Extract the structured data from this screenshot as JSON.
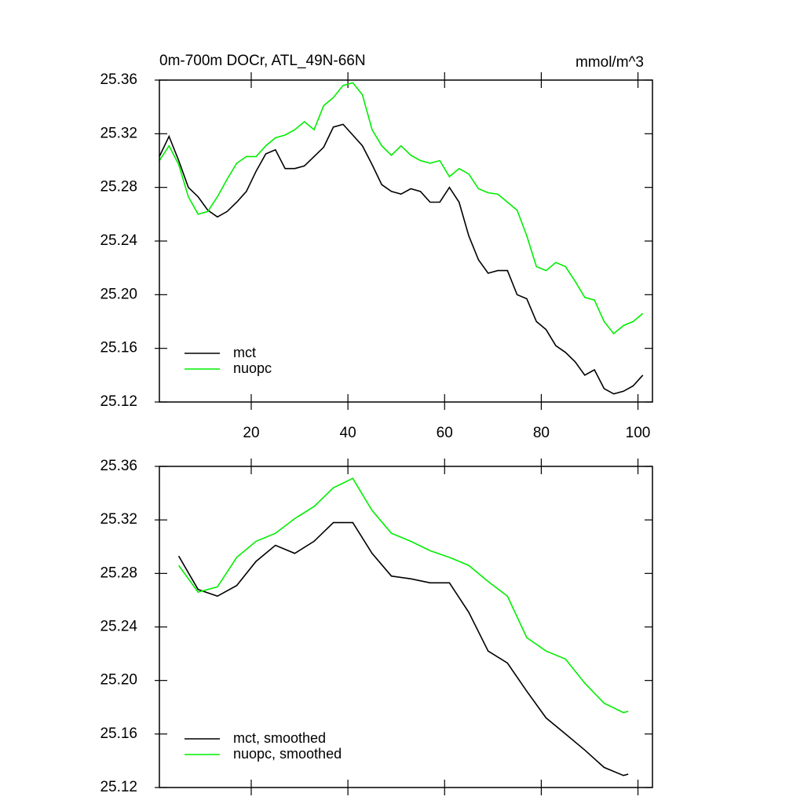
{
  "chart_data": [
    {
      "type": "line",
      "title": "0m-700m DOCr, ATL_49N-66N",
      "units": "mmol/m^3",
      "x": [
        1,
        3,
        5,
        7,
        9,
        11,
        13,
        15,
        17,
        19,
        21,
        23,
        25,
        27,
        29,
        31,
        33,
        35,
        37,
        39,
        41,
        43,
        45,
        47,
        49,
        51,
        53,
        55,
        57,
        59,
        61,
        63,
        65,
        67,
        69,
        71,
        73,
        75,
        77,
        79,
        81,
        83,
        85,
        87,
        89,
        91,
        93,
        95,
        97,
        99,
        101
      ],
      "series": [
        {
          "name": "mct",
          "color": "#000000",
          "values": [
            25.303,
            25.318,
            25.3,
            25.28,
            25.273,
            25.263,
            25.258,
            25.262,
            25.269,
            25.277,
            25.292,
            25.305,
            25.308,
            25.294,
            25.294,
            25.296,
            25.303,
            25.31,
            25.325,
            25.327,
            25.319,
            25.311,
            25.297,
            25.282,
            25.277,
            25.275,
            25.279,
            25.277,
            25.269,
            25.269,
            25.28,
            25.269,
            25.244,
            25.226,
            25.216,
            25.218,
            25.218,
            25.2,
            25.197,
            25.18,
            25.174,
            25.162,
            25.157,
            25.15,
            25.14,
            25.144,
            25.13,
            25.126,
            25.128,
            25.132,
            25.14
          ]
        },
        {
          "name": "nuopc",
          "color": "#00ee00",
          "values": [
            25.3,
            25.311,
            25.297,
            25.273,
            25.26,
            25.262,
            25.273,
            25.286,
            25.298,
            25.303,
            25.303,
            25.311,
            25.317,
            25.319,
            25.323,
            25.329,
            25.323,
            25.341,
            25.347,
            25.356,
            25.358,
            25.349,
            25.323,
            25.311,
            25.304,
            25.311,
            25.304,
            25.3,
            25.298,
            25.3,
            25.288,
            25.294,
            25.29,
            25.279,
            25.276,
            25.275,
            25.269,
            25.263,
            25.244,
            25.221,
            25.218,
            25.224,
            25.221,
            25.21,
            25.198,
            25.196,
            25.18,
            25.171,
            25.177,
            25.18,
            25.186
          ]
        }
      ],
      "xlim": [
        1,
        103
      ],
      "ylim": [
        25.12,
        25.36
      ],
      "xticks": [
        20,
        40,
        60,
        80,
        100
      ],
      "yticks": [
        25.12,
        25.16,
        {
          "value": 25.2,
          "label": "25.20"
        },
        25.24,
        25.28,
        25.32,
        25.36
      ],
      "legend": "lower left"
    },
    {
      "type": "line",
      "x": [
        5,
        9,
        13,
        17,
        21,
        25,
        29,
        33,
        37,
        41,
        45,
        49,
        53,
        57,
        61,
        65,
        69,
        73,
        77,
        81,
        85,
        89,
        93,
        97,
        98
      ],
      "series": [
        {
          "name": "mct, smoothed",
          "color": "#000000",
          "values": [
            25.293,
            25.268,
            25.263,
            25.271,
            25.289,
            25.301,
            25.295,
            25.304,
            25.318,
            25.318,
            25.295,
            25.278,
            25.276,
            25.273,
            25.273,
            25.251,
            25.222,
            25.213,
            25.192,
            25.172,
            25.16,
            25.148,
            25.135,
            25.129,
            25.13
          ]
        },
        {
          "name": "nuopc, smoothed",
          "color": "#00ee00",
          "values": [
            25.286,
            25.266,
            25.27,
            25.292,
            25.304,
            25.31,
            25.321,
            25.33,
            25.344,
            25.351,
            25.327,
            25.31,
            25.304,
            25.297,
            25.292,
            25.286,
            25.274,
            25.263,
            25.232,
            25.222,
            25.216,
            25.198,
            25.183,
            25.176,
            25.177
          ]
        }
      ],
      "xlim": [
        1,
        103
      ],
      "ylim": [
        25.12,
        25.36
      ],
      "xticks": [
        20,
        40,
        60,
        80,
        100
      ],
      "yticks": [
        25.12,
        25.16,
        {
          "value": 25.2,
          "label": "25.20"
        },
        25.24,
        25.28,
        25.32,
        25.36
      ],
      "legend": "lower left"
    }
  ]
}
